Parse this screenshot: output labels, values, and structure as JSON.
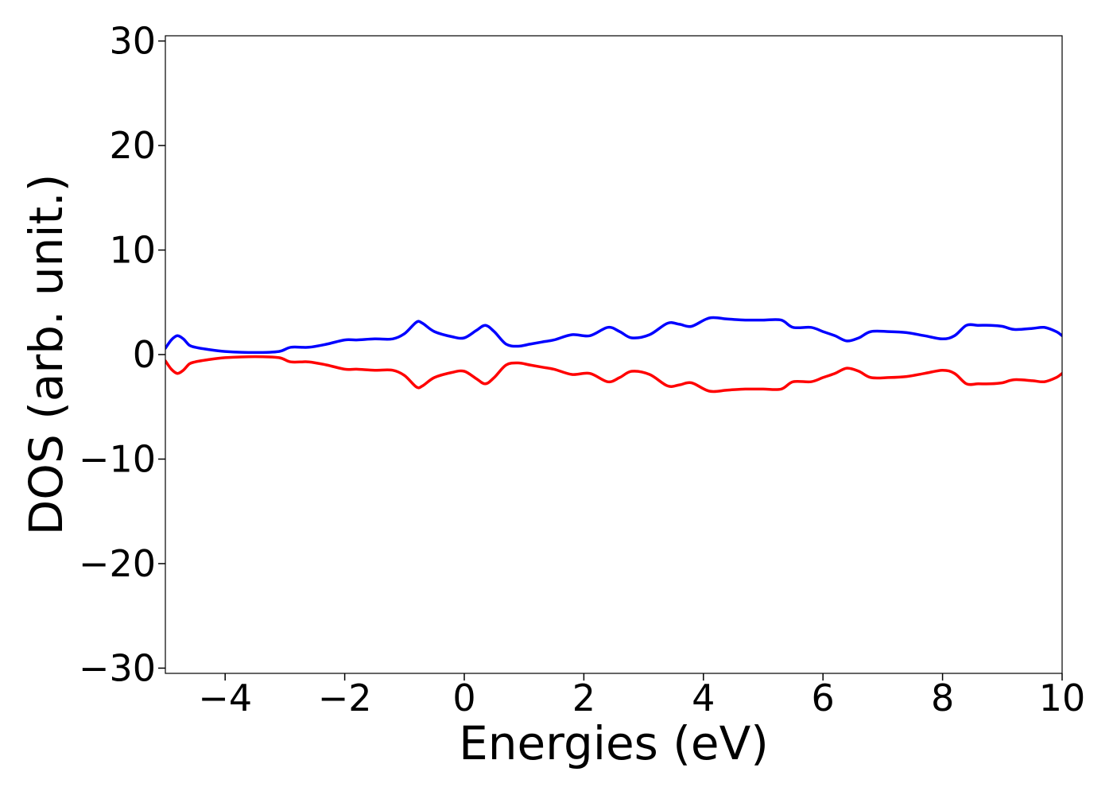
{
  "chart_data": {
    "type": "line",
    "xlabel": "Energies (eV)",
    "ylabel": "DOS (arb. unit.)",
    "xlim": [
      -5,
      10
    ],
    "ylim": [
      -30.5,
      30.5
    ],
    "xticks": [
      -4,
      -2,
      0,
      2,
      4,
      6,
      8,
      10
    ],
    "xtick_labels": [
      "−4",
      "−2",
      "0",
      "2",
      "4",
      "6",
      "8",
      "10"
    ],
    "yticks": [
      -30,
      -20,
      -10,
      0,
      10,
      20,
      30
    ],
    "ytick_labels": [
      "−30",
      "−20",
      "−10",
      "0",
      "10",
      "20",
      "30"
    ],
    "grid": false,
    "legend": "none",
    "series": [
      {
        "color": "#0000ff",
        "x": [
          -5.0,
          -4.9,
          -4.8,
          -4.7,
          -4.6,
          -4.5,
          -4.3,
          -4.0,
          -3.5,
          -3.1,
          -2.9,
          -2.6,
          -2.3,
          -2.0,
          -1.8,
          -1.5,
          -1.2,
          -1.0,
          -0.8,
          -0.7,
          -0.5,
          -0.2,
          0.0,
          0.2,
          0.35,
          0.5,
          0.7,
          0.9,
          1.1,
          1.3,
          1.5,
          1.8,
          2.1,
          2.4,
          2.6,
          2.8,
          3.1,
          3.4,
          3.6,
          3.8,
          4.1,
          4.4,
          4.7,
          5.0,
          5.3,
          5.5,
          5.8,
          6.0,
          6.2,
          6.4,
          6.6,
          6.8,
          7.1,
          7.4,
          7.7,
          8.0,
          8.2,
          8.4,
          8.6,
          8.8,
          9.0,
          9.2,
          9.5,
          9.7,
          9.9,
          10.0
        ],
        "y": [
          0.6,
          1.4,
          1.8,
          1.5,
          0.9,
          0.7,
          0.5,
          0.3,
          0.2,
          0.3,
          0.7,
          0.7,
          1.0,
          1.4,
          1.4,
          1.5,
          1.5,
          2.0,
          3.1,
          3.0,
          2.2,
          1.7,
          1.6,
          2.3,
          2.8,
          2.2,
          1.0,
          0.8,
          1.0,
          1.2,
          1.4,
          1.9,
          1.8,
          2.6,
          2.2,
          1.6,
          1.9,
          3.0,
          2.9,
          2.7,
          3.5,
          3.4,
          3.3,
          3.3,
          3.3,
          2.6,
          2.6,
          2.2,
          1.8,
          1.3,
          1.6,
          2.2,
          2.2,
          2.1,
          1.8,
          1.5,
          1.8,
          2.8,
          2.8,
          2.8,
          2.7,
          2.4,
          2.5,
          2.6,
          2.2,
          1.8
        ]
      },
      {
        "color": "#ff0000",
        "x": [
          -5.0,
          -4.9,
          -4.8,
          -4.7,
          -4.6,
          -4.5,
          -4.3,
          -4.0,
          -3.5,
          -3.1,
          -2.9,
          -2.6,
          -2.3,
          -2.0,
          -1.8,
          -1.5,
          -1.2,
          -1.0,
          -0.8,
          -0.7,
          -0.5,
          -0.2,
          0.0,
          0.2,
          0.35,
          0.5,
          0.7,
          0.9,
          1.1,
          1.3,
          1.5,
          1.8,
          2.1,
          2.4,
          2.6,
          2.8,
          3.1,
          3.4,
          3.6,
          3.8,
          4.1,
          4.4,
          4.7,
          5.0,
          5.3,
          5.5,
          5.8,
          6.0,
          6.2,
          6.4,
          6.6,
          6.8,
          7.1,
          7.4,
          7.7,
          8.0,
          8.2,
          8.4,
          8.6,
          8.8,
          9.0,
          9.2,
          9.5,
          9.7,
          9.9,
          10.0
        ],
        "y": [
          -0.6,
          -1.4,
          -1.8,
          -1.5,
          -0.9,
          -0.7,
          -0.5,
          -0.3,
          -0.2,
          -0.3,
          -0.7,
          -0.7,
          -1.0,
          -1.4,
          -1.4,
          -1.5,
          -1.5,
          -2.0,
          -3.1,
          -3.0,
          -2.2,
          -1.7,
          -1.6,
          -2.3,
          -2.8,
          -2.2,
          -1.0,
          -0.8,
          -1.0,
          -1.2,
          -1.4,
          -1.9,
          -1.8,
          -2.6,
          -2.2,
          -1.6,
          -1.9,
          -3.0,
          -2.9,
          -2.7,
          -3.5,
          -3.4,
          -3.3,
          -3.3,
          -3.3,
          -2.6,
          -2.6,
          -2.2,
          -1.8,
          -1.3,
          -1.6,
          -2.2,
          -2.2,
          -2.1,
          -1.8,
          -1.5,
          -1.8,
          -2.8,
          -2.8,
          -2.8,
          -2.7,
          -2.4,
          -2.5,
          -2.6,
          -2.2,
          -1.8
        ]
      }
    ]
  }
}
